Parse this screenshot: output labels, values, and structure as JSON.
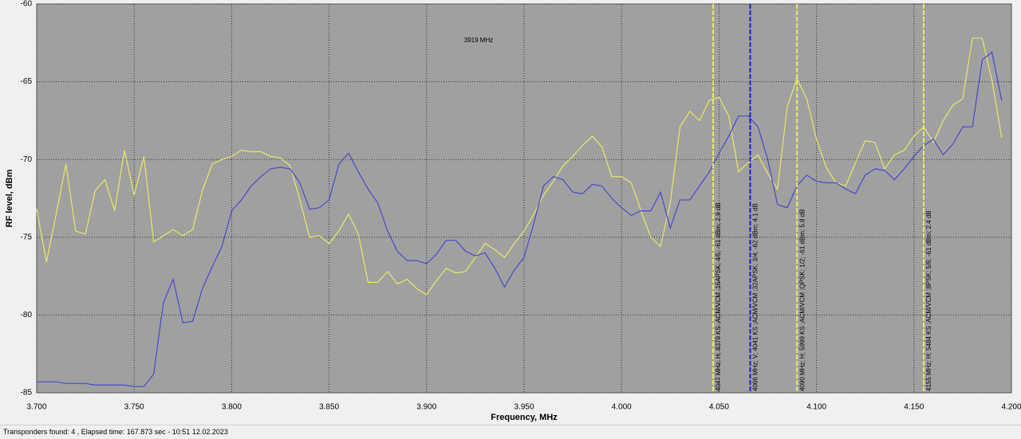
{
  "chart_data": {
    "type": "line",
    "annotation": "3919 MHz",
    "xlabel": "Frequency, MHz",
    "ylabel": "RF level, dBm",
    "xlim": [
      3.7,
      4.2
    ],
    "ylim": [
      -85,
      -60
    ],
    "xticks": [
      {
        "value": 3.7,
        "label": "3.700"
      },
      {
        "value": 3.75,
        "label": "3.750"
      },
      {
        "value": 3.8,
        "label": "3.800"
      },
      {
        "value": 3.85,
        "label": "3.850"
      },
      {
        "value": 3.9,
        "label": "3.900"
      },
      {
        "value": 3.95,
        "label": "3.950"
      },
      {
        "value": 4.0,
        "label": "4.000"
      },
      {
        "value": 4.05,
        "label": "4.050"
      },
      {
        "value": 4.1,
        "label": "4.100"
      },
      {
        "value": 4.15,
        "label": "4.150"
      },
      {
        "value": 4.2,
        "label": "4.200"
      }
    ],
    "yticks": [
      -85,
      -80,
      -75,
      -70,
      -65,
      -60
    ],
    "grid": true,
    "x": [
      3.7,
      3.705,
      3.71,
      3.715,
      3.72,
      3.725,
      3.73,
      3.735,
      3.74,
      3.745,
      3.75,
      3.755,
      3.76,
      3.765,
      3.77,
      3.775,
      3.78,
      3.785,
      3.79,
      3.795,
      3.8,
      3.805,
      3.81,
      3.815,
      3.82,
      3.825,
      3.83,
      3.835,
      3.84,
      3.845,
      3.85,
      3.855,
      3.86,
      3.865,
      3.87,
      3.875,
      3.88,
      3.885,
      3.89,
      3.895,
      3.9,
      3.905,
      3.91,
      3.915,
      3.92,
      3.925,
      3.93,
      3.935,
      3.94,
      3.945,
      3.95,
      3.955,
      3.96,
      3.965,
      3.97,
      3.975,
      3.98,
      3.985,
      3.99,
      3.995,
      4.0,
      4.005,
      4.01,
      4.015,
      4.02,
      4.025,
      4.03,
      4.035,
      4.04,
      4.045,
      4.05,
      4.055,
      4.06,
      4.065,
      4.07,
      4.075,
      4.08,
      4.085,
      4.09,
      4.095,
      4.1,
      4.105,
      4.11,
      4.115,
      4.12,
      4.125,
      4.13,
      4.135,
      4.14,
      4.145,
      4.15,
      4.155,
      4.16,
      4.165,
      4.17,
      4.175,
      4.18,
      4.185,
      4.19,
      4.195
    ],
    "series": [
      {
        "color": "#e8e868",
        "values": [
          -73.2,
          -76.6,
          -73.5,
          -70.3,
          -74.6,
          -74.8,
          -72.0,
          -71.3,
          -73.3,
          -69.4,
          -72.3,
          -69.8,
          -75.3,
          -74.9,
          -74.5,
          -74.9,
          -74.5,
          -72.0,
          -70.3,
          -70.0,
          -69.8,
          -69.4,
          -69.5,
          -69.5,
          -69.8,
          -69.9,
          -70.4,
          -72.6,
          -75.0,
          -74.9,
          -75.4,
          -74.6,
          -73.5,
          -74.8,
          -77.9,
          -77.9,
          -77.2,
          -78.0,
          -77.7,
          -78.3,
          -78.7,
          -77.8,
          -77.0,
          -77.3,
          -77.2,
          -76.3,
          -75.4,
          -75.8,
          -76.3,
          -75.4,
          -74.6,
          -73.5,
          -72.3,
          -71.4,
          -70.4,
          -69.8,
          -69.1,
          -68.5,
          -69.2,
          -71.1,
          -71.1,
          -71.5,
          -73.3,
          -75.0,
          -75.6,
          -72.8,
          -67.9,
          -66.9,
          -67.5,
          -66.2,
          -66.0,
          -67.2,
          -70.8,
          -70.2,
          -69.7,
          -70.9,
          -71.9,
          -66.6,
          -64.8,
          -66.1,
          -68.7,
          -70.5,
          -71.5,
          -71.7,
          -70.2,
          -68.8,
          -68.9,
          -70.6,
          -69.7,
          -69.4,
          -68.5,
          -67.9,
          -68.9,
          -67.5,
          -66.5,
          -66.1,
          -62.2,
          -62.2,
          -64.9,
          -68.6
        ]
      },
      {
        "color": "#4848cc",
        "values": [
          -84.3,
          -84.3,
          -84.3,
          -84.4,
          -84.4,
          -84.4,
          -84.5,
          -84.5,
          -84.5,
          -84.5,
          -84.6,
          -84.6,
          -83.8,
          -79.2,
          -77.7,
          -80.5,
          -80.4,
          -78.3,
          -76.9,
          -75.6,
          -73.3,
          -72.6,
          -71.7,
          -71.1,
          -70.6,
          -70.5,
          -70.6,
          -71.5,
          -73.2,
          -73.1,
          -72.6,
          -70.3,
          -69.6,
          -70.8,
          -71.9,
          -72.8,
          -74.6,
          -75.9,
          -76.5,
          -76.5,
          -76.7,
          -76.1,
          -75.2,
          -75.2,
          -75.9,
          -76.2,
          -76.0,
          -77.0,
          -78.2,
          -77.1,
          -76.3,
          -74.1,
          -71.7,
          -71.1,
          -71.3,
          -72.1,
          -72.2,
          -71.6,
          -71.7,
          -72.5,
          -73.1,
          -73.6,
          -73.3,
          -73.3,
          -72.1,
          -74.4,
          -72.6,
          -72.6,
          -71.7,
          -70.8,
          -69.6,
          -68.5,
          -67.2,
          -67.2,
          -67.9,
          -70.0,
          -72.9,
          -73.1,
          -71.7,
          -71.0,
          -71.4,
          -71.5,
          -71.5,
          -71.9,
          -72.2,
          -71.0,
          -70.6,
          -70.7,
          -71.3,
          -70.6,
          -69.8,
          -69.1,
          -68.7,
          -69.7,
          -69.0,
          -67.9,
          -67.9,
          -63.6,
          -63.1,
          -66.2
        ]
      }
    ],
    "markers": [
      {
        "x": 4.047,
        "color": "#e8e868",
        "label": "4047 MHz; H; 8379 KS ;ACM/VCM ;16APSK; 4/5; -61 dBm; 2.9 dB"
      },
      {
        "x": 4.066,
        "color": "#2020c0",
        "label": "4066 MHz; V; 4041 KS ;ACM/VCM ;32APSK; 3/4; -62 dBm; 4.1 dB"
      },
      {
        "x": 4.09,
        "color": "#e8e868",
        "label": "4090 MHz; H; 5999 KS ;ACM/VCM ;QPSK; 1/2; -61 dBm; 5.8 dB"
      },
      {
        "x": 4.155,
        "color": "#e8e868",
        "label": "4155 MHz; H; 5484 KS ;ACM/VCM ;8PSK; 5/6; -61 dBm; 2.4 dB"
      }
    ]
  },
  "status": "Transponders found: 4 , Elapsed time: 167.873 sec - 10:51 12.02.2023"
}
